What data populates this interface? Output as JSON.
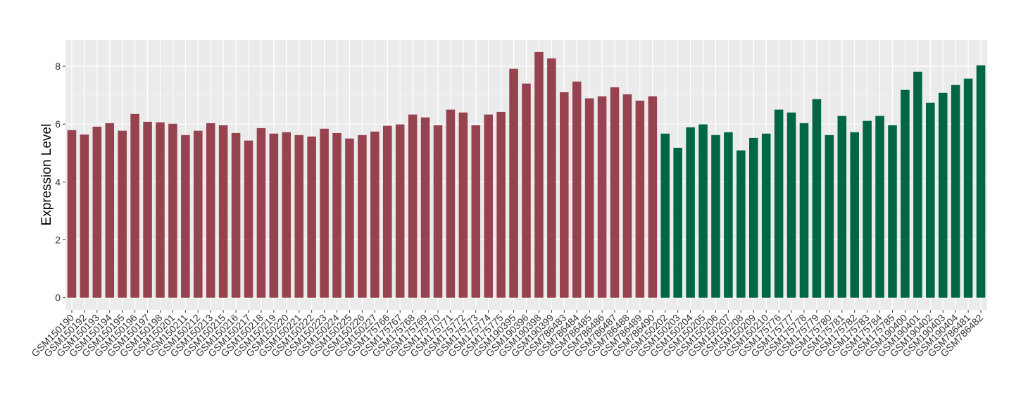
{
  "chart_data": {
    "type": "bar",
    "y_label": "Expression Level",
    "categories": [
      "GSM150190",
      "GSM150192",
      "GSM150193",
      "GSM150194",
      "GSM150195",
      "GSM150196",
      "GSM150197",
      "GSM150198",
      "GSM150201",
      "GSM150211",
      "GSM150212",
      "GSM150213",
      "GSM150215",
      "GSM150216",
      "GSM150217",
      "GSM150218",
      "GSM150219",
      "GSM150220",
      "GSM150221",
      "GSM150222",
      "GSM150223",
      "GSM150224",
      "GSM150225",
      "GSM150226",
      "GSM150227",
      "GSM175766",
      "GSM175767",
      "GSM175768",
      "GSM175769",
      "GSM175770",
      "GSM175771",
      "GSM175772",
      "GSM175773",
      "GSM175774",
      "GSM175775",
      "GSM190395",
      "GSM190396",
      "GSM190398",
      "GSM190399",
      "GSM786483",
      "GSM786484",
      "GSM786485",
      "GSM786486",
      "GSM786487",
      "GSM786488",
      "GSM786489",
      "GSM786490",
      "GSM150202",
      "GSM150203",
      "GSM150204",
      "GSM150205",
      "GSM150206",
      "GSM150207",
      "GSM150208",
      "GSM150209",
      "GSM150210",
      "GSM175776",
      "GSM175777",
      "GSM175778",
      "GSM175779",
      "GSM175780",
      "GSM175781",
      "GSM175782",
      "GSM175783",
      "GSM175784",
      "GSM175785",
      "GSM190400",
      "GSM190401",
      "GSM190402",
      "GSM190403",
      "GSM190404",
      "GSM786481",
      "GSM786482"
    ],
    "series": [
      {
        "color": "#97434f",
        "values": [
          5.79,
          5.64,
          5.91,
          6.03,
          5.77,
          6.35,
          6.08,
          6.06,
          6.01,
          5.62,
          5.77,
          6.03,
          5.96,
          5.69,
          5.43,
          5.86,
          5.67,
          5.72,
          5.62,
          5.57,
          5.84,
          5.69,
          5.5,
          5.62,
          5.74,
          5.94,
          5.99,
          6.33,
          6.23,
          5.96,
          6.5,
          6.4,
          5.96,
          6.33,
          6.42,
          7.91,
          7.4,
          8.49,
          8.27,
          7.1,
          7.47,
          6.89,
          6.96,
          7.27,
          7.03,
          6.81,
          6.96,
          null,
          null,
          null,
          null,
          null,
          null,
          null,
          null,
          null,
          null,
          null,
          null,
          null,
          null,
          null,
          null,
          null,
          null,
          null,
          null,
          null,
          null,
          null,
          null,
          null,
          null
        ]
      },
      {
        "color": "#006643",
        "values": [
          null,
          null,
          null,
          null,
          null,
          null,
          null,
          null,
          null,
          null,
          null,
          null,
          null,
          null,
          null,
          null,
          null,
          null,
          null,
          null,
          null,
          null,
          null,
          null,
          null,
          null,
          null,
          null,
          null,
          null,
          null,
          null,
          null,
          null,
          null,
          null,
          null,
          null,
          null,
          null,
          null,
          null,
          null,
          null,
          null,
          null,
          null,
          5.67,
          5.18,
          5.89,
          5.99,
          5.62,
          5.72,
          5.09,
          5.52,
          5.67,
          6.5,
          6.4,
          6.03,
          6.86,
          5.62,
          6.28,
          5.72,
          6.11,
          6.28,
          5.96,
          7.18,
          7.81,
          6.74,
          7.08,
          7.35,
          7.57,
          8.03
        ]
      }
    ],
    "ylim": [
      -0.42,
      8.9
    ],
    "yticks": [
      0,
      2,
      4,
      6,
      8
    ],
    "grid": true
  }
}
